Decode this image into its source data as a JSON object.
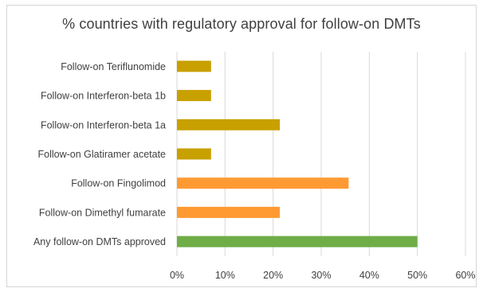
{
  "chart_data": {
    "type": "bar",
    "orientation": "horizontal",
    "title": "% countries with regulatory approval for follow-on DMTs",
    "xlabel": "",
    "ylabel": "",
    "categories": [
      "Follow-on Teriflunomide",
      "Follow-on Interferon-beta 1b",
      "Follow-on Interferon-beta 1a",
      "Follow-on Glatiramer acetate",
      "Follow-on Fingolimod",
      "Follow-on Dimethyl fumarate",
      "Any follow-on DMTs approved"
    ],
    "values": [
      7.1,
      7.1,
      21.4,
      7.1,
      35.7,
      21.4,
      50.0
    ],
    "bar_colors": [
      "#c8a000",
      "#c8a000",
      "#c8a000",
      "#c8a000",
      "#ff9a33",
      "#ff9a33",
      "#6fad47"
    ],
    "xlim": [
      0,
      60
    ],
    "ticks": [
      0,
      10,
      20,
      30,
      40,
      50,
      60
    ],
    "tick_labels": [
      "0%",
      "10%",
      "20%",
      "30%",
      "40%",
      "50%",
      "60%"
    ],
    "grid": true,
    "legend": false
  }
}
